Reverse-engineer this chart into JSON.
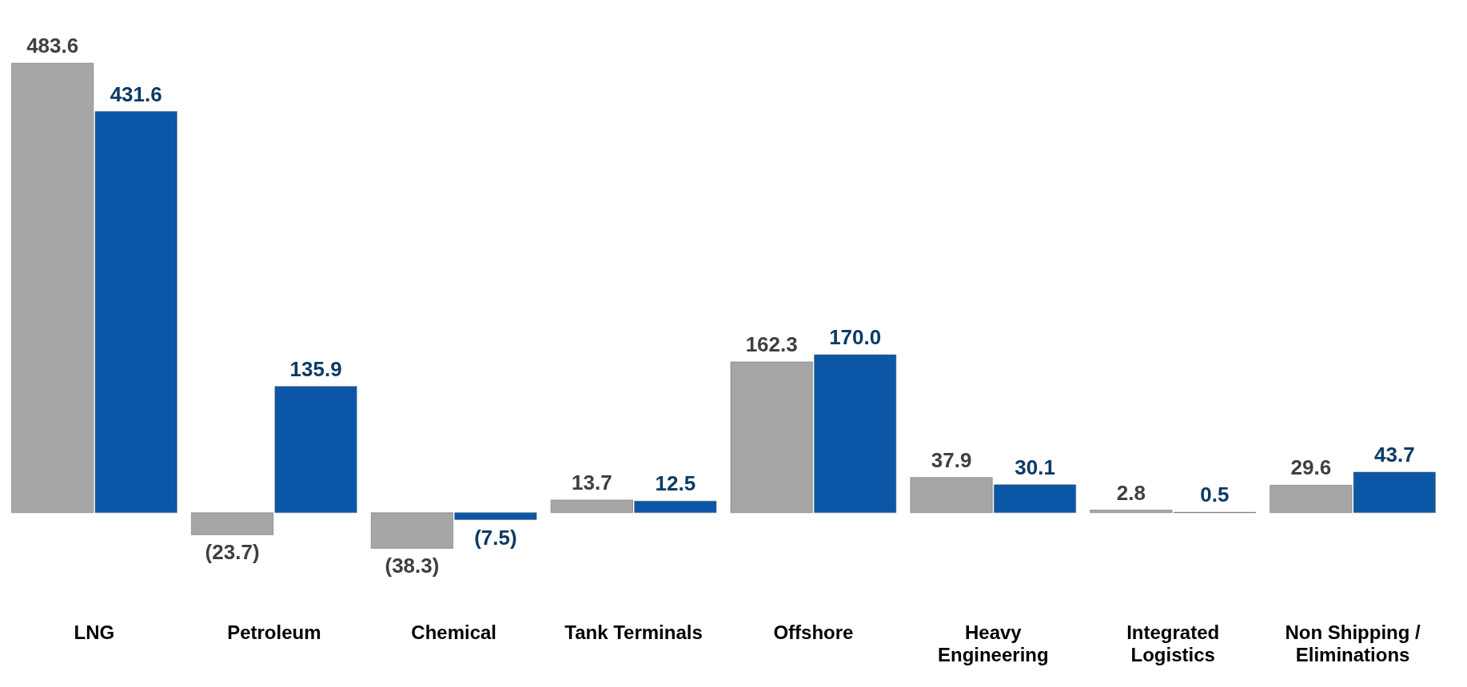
{
  "chart_data": {
    "type": "bar",
    "categories": [
      "LNG",
      "Petroleum",
      "Chemical",
      "Tank Terminals",
      "Offshore",
      "Heavy Engineering",
      "Integrated Logistics",
      "Non Shipping / Eliminations"
    ],
    "series": [
      {
        "color": "#a6a6a6",
        "values": [
          483.6,
          -23.7,
          -38.3,
          13.7,
          162.3,
          37.9,
          2.8,
          29.6
        ],
        "value_labels": [
          "483.6",
          "(23.7)",
          "(38.3)",
          "13.7",
          "162.3",
          "37.9",
          "2.8",
          "29.6"
        ]
      },
      {
        "color": "#0b56a6",
        "values": [
          431.6,
          135.9,
          -7.5,
          12.5,
          170.0,
          30.1,
          0.5,
          43.7
        ],
        "value_labels": [
          "431.6",
          "135.9",
          "(7.5)",
          "12.5",
          "170.0",
          "30.1",
          "0.5",
          "43.7"
        ]
      }
    ],
    "grid": false,
    "legend": false
  }
}
